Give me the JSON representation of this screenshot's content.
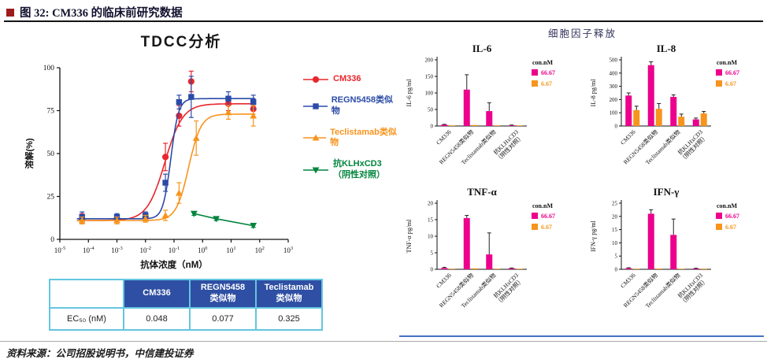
{
  "page": {
    "figure_label": "图 32: CM336 的临床前研究数据",
    "source_text": "资料来源：公司招股说明书，中信建投证券",
    "accent_red": "#9e1b1b"
  },
  "left_panel": {
    "title": "TDCC分析",
    "legend": [
      {
        "label": "CM336",
        "color": "#e8262d",
        "marker": "circle"
      },
      {
        "label": "REGN5458类似物",
        "color": "#2b4ba8",
        "marker": "square"
      },
      {
        "label": "Teclistamab类似物",
        "color": "#f7941d",
        "marker": "triangle-up"
      },
      {
        "label": "抗KLHxCD3\n（阴性对照）",
        "color": "#00843d",
        "marker": "triangle-down"
      }
    ],
    "table": {
      "row_header": "EC₅₀ (nM)",
      "columns": [
        "CM336",
        "REGN5458\n类似物",
        "Teclistamab\n类似物"
      ],
      "values": [
        "0.048",
        "0.077",
        "0.325"
      ],
      "header_bg": "#2e4fa3",
      "border_color": "#63c6df"
    }
  },
  "right_panel": {
    "title": "细胞因子释放"
  },
  "chart_data": [
    {
      "type": "line",
      "title": "TDCC分析",
      "xlabel": "抗体浓度（nM）",
      "ylabel": "溶解(%)",
      "xscale": "log",
      "xlim_exp": [
        -5,
        3
      ],
      "ylim": [
        0,
        100
      ],
      "yticks": [
        0,
        25,
        50,
        75,
        100
      ],
      "series": [
        {
          "name": "CM336",
          "color": "#e8262d",
          "marker": "circle",
          "ec50": 0.048,
          "curve": {
            "bottom": 11,
            "top": 79,
            "hill": 1.4
          },
          "points": [
            {
              "x": 6e-05,
              "y": 12,
              "e": 3
            },
            {
              "x": 0.001,
              "y": 12,
              "e": 2
            },
            {
              "x": 0.01,
              "y": 13,
              "e": 2
            },
            {
              "x": 0.05,
              "y": 48,
              "e": 8
            },
            {
              "x": 0.15,
              "y": 72,
              "e": 6
            },
            {
              "x": 0.4,
              "y": 92,
              "e": 6
            },
            {
              "x": 8,
              "y": 79,
              "e": 4
            },
            {
              "x": 60,
              "y": 76,
              "e": 5
            }
          ]
        },
        {
          "name": "REGN5458类似物",
          "color": "#2b4ba8",
          "marker": "square",
          "ec50": 0.077,
          "curve": {
            "bottom": 12,
            "top": 82,
            "hill": 3.2
          },
          "points": [
            {
              "x": 6e-05,
              "y": 13,
              "e": 3
            },
            {
              "x": 0.001,
              "y": 13,
              "e": 2
            },
            {
              "x": 0.01,
              "y": 14,
              "e": 2
            },
            {
              "x": 0.05,
              "y": 33,
              "e": 5
            },
            {
              "x": 0.15,
              "y": 80,
              "e": 4
            },
            {
              "x": 0.4,
              "y": 83,
              "e": 12
            },
            {
              "x": 8,
              "y": 82,
              "e": 4
            },
            {
              "x": 60,
              "y": 80,
              "e": 4
            }
          ]
        },
        {
          "name": "Teclistamab类似物",
          "color": "#f7941d",
          "marker": "triangle-up",
          "ec50": 0.325,
          "curve": {
            "bottom": 11,
            "top": 73,
            "hill": 2.0
          },
          "points": [
            {
              "x": 6e-05,
              "y": 11,
              "e": 2
            },
            {
              "x": 0.001,
              "y": 11,
              "e": 2
            },
            {
              "x": 0.01,
              "y": 12,
              "e": 2
            },
            {
              "x": 0.05,
              "y": 14,
              "e": 3
            },
            {
              "x": 0.15,
              "y": 27,
              "e": 6
            },
            {
              "x": 0.6,
              "y": 59,
              "e": 10
            },
            {
              "x": 8,
              "y": 74,
              "e": 4
            },
            {
              "x": 60,
              "y": 72,
              "e": 6
            }
          ]
        },
        {
          "name": "抗KLHxCD3（阴性对照）",
          "color": "#00843d",
          "marker": "triangle-down",
          "points": [
            {
              "x": 0.5,
              "y": 15,
              "e": 1
            },
            {
              "x": 3,
              "y": 12,
              "e": 1
            },
            {
              "x": 60,
              "y": 8,
              "e": 1
            }
          ]
        }
      ]
    },
    {
      "type": "bar",
      "title": "IL-6",
      "ylabel": "IL-6 pg/ml",
      "ylim": [
        0,
        200
      ],
      "yticks": [
        0,
        50,
        100,
        150,
        200
      ],
      "legend_title": "con.nM",
      "categories": [
        "CM336",
        "REGN5458类似物",
        "Teclistamab类似物",
        "抗KLHxCD3\n（阴性对照）"
      ],
      "series": [
        {
          "name": "66.67",
          "color": "#ec008c",
          "values": [
            4,
            110,
            45,
            2
          ],
          "errors": [
            1,
            45,
            25,
            1
          ]
        },
        {
          "name": "6.67",
          "color": "#f7941d",
          "values": [
            2,
            3,
            2,
            1
          ],
          "errors": [
            0,
            0,
            0,
            0
          ]
        }
      ]
    },
    {
      "type": "bar",
      "title": "IL-8",
      "ylabel": "IL-8 pg/ml",
      "ylim": [
        0,
        500
      ],
      "yticks": [
        0,
        100,
        200,
        300,
        400,
        500
      ],
      "legend_title": "con.nM",
      "categories": [
        "CM336",
        "REGN5458类似物",
        "Teclistamab类似物",
        "抗KLHxCD3\n（阴性对照）"
      ],
      "series": [
        {
          "name": "66.67",
          "color": "#ec008c",
          "values": [
            230,
            460,
            220,
            50
          ],
          "errors": [
            20,
            25,
            15,
            10
          ]
        },
        {
          "name": "6.67",
          "color": "#f7941d",
          "values": [
            120,
            130,
            70,
            95
          ],
          "errors": [
            30,
            40,
            20,
            15
          ]
        }
      ]
    },
    {
      "type": "bar",
      "title": "TNF-α",
      "ylabel": "TNF-α pg/ml",
      "ylim": [
        0,
        20
      ],
      "yticks": [
        0,
        5,
        10,
        15,
        20
      ],
      "legend_title": "con.nM",
      "categories": [
        "CM336",
        "REGN5458类似物",
        "Teclistamab类似物",
        "抗KLHxCD3\n（阴性对照）"
      ],
      "series": [
        {
          "name": "66.67",
          "color": "#ec008c",
          "values": [
            0.4,
            15.5,
            4.5,
            0.3
          ],
          "errors": [
            0.2,
            0.8,
            6.5,
            0.1
          ]
        },
        {
          "name": "6.67",
          "color": "#f7941d",
          "values": [
            0.2,
            0.3,
            0.2,
            0.1
          ],
          "errors": [
            0,
            0,
            0,
            0
          ]
        }
      ]
    },
    {
      "type": "bar",
      "title": "IFN-γ",
      "ylabel": "IFN-γ pg/ml",
      "ylim": [
        0,
        25
      ],
      "yticks": [
        0,
        5,
        10,
        15,
        20,
        25
      ],
      "legend_title": "con.nM",
      "categories": [
        "CM336",
        "REGN5458类似物",
        "Teclistamab类似物",
        "抗KLHxCD3\n（阴性对照）"
      ],
      "series": [
        {
          "name": "66.67",
          "color": "#ec008c",
          "values": [
            0.4,
            21,
            13,
            0.3
          ],
          "errors": [
            0.2,
            1.5,
            6,
            0.1
          ]
        },
        {
          "name": "6.67",
          "color": "#f7941d",
          "values": [
            0.2,
            0.3,
            0.2,
            0.1
          ],
          "errors": [
            0,
            0,
            0,
            0
          ]
        }
      ]
    }
  ]
}
